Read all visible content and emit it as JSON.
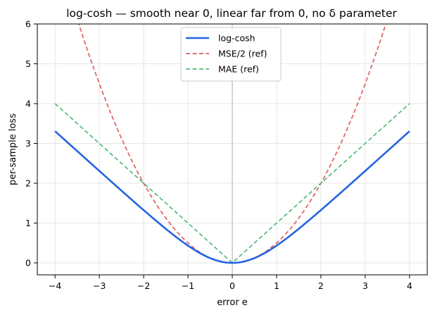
{
  "chart_data": {
    "type": "line",
    "title": "log-cosh — smooth near 0, linear far from 0, no δ parameter",
    "xlabel": "error  e",
    "ylabel": "per-sample loss",
    "xlim": [
      -4.4,
      4.4
    ],
    "ylim": [
      -0.3,
      6
    ],
    "xticks": [
      -4,
      -3,
      -2,
      -1,
      0,
      1,
      2,
      3,
      4
    ],
    "xtick_labels": [
      "−4",
      "−3",
      "−2",
      "−1",
      "0",
      "1",
      "2",
      "3",
      "4"
    ],
    "yticks": [
      0,
      1,
      2,
      3,
      4,
      5,
      6
    ],
    "ytick_labels": [
      "0",
      "1",
      "2",
      "3",
      "4",
      "5",
      "6"
    ],
    "grid": true,
    "zero_line": "x=0",
    "legend_position": "top-center",
    "series": [
      {
        "name": "log-cosh",
        "color": "#2563e0",
        "style": "solid",
        "x": [
          -4,
          -3.5,
          -3,
          -2.5,
          -2,
          -1.5,
          -1,
          -0.5,
          0,
          0.5,
          1,
          1.5,
          2,
          2.5,
          3,
          3.5,
          4
        ],
        "y": [
          3.307,
          2.809,
          2.309,
          1.813,
          1.325,
          0.855,
          0.434,
          0.12,
          0,
          0.12,
          0.434,
          0.855,
          1.325,
          1.813,
          2.309,
          2.809,
          3.307
        ]
      },
      {
        "name": "MSE/2 (ref)",
        "color": "#e06060",
        "style": "dashed",
        "x": [
          -3.46,
          -3,
          -2.5,
          -2,
          -1.5,
          -1,
          -0.5,
          0,
          0.5,
          1,
          1.5,
          2,
          2.5,
          3,
          3.46
        ],
        "y": [
          6.0,
          4.5,
          3.125,
          2.0,
          1.125,
          0.5,
          0.125,
          0,
          0.125,
          0.5,
          1.125,
          2.0,
          3.125,
          4.5,
          6.0
        ]
      },
      {
        "name": "MAE (ref)",
        "color": "#52bb78",
        "style": "dashed",
        "x": [
          -4,
          -3,
          -2,
          -1,
          0,
          1,
          2,
          3,
          4
        ],
        "y": [
          4,
          3,
          2,
          1,
          0,
          1,
          2,
          3,
          4
        ]
      }
    ]
  }
}
